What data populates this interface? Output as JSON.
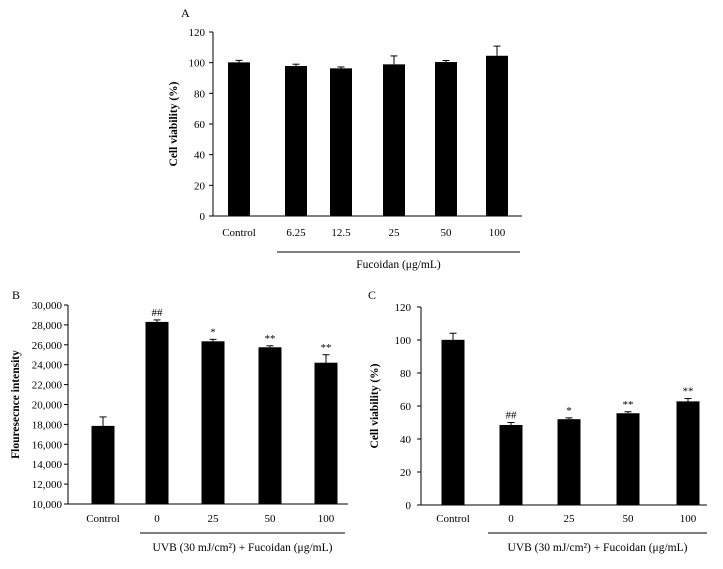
{
  "chart_data": [
    {
      "type": "bar",
      "panel_label": "A",
      "title": "",
      "ylabel": "Cell viability (%)",
      "ylim": [
        0,
        120
      ],
      "yticks": [
        0,
        20,
        40,
        60,
        80,
        100,
        120
      ],
      "ytick_labels": [
        "0",
        "20",
        "40",
        "60",
        "80",
        "100",
        "120"
      ],
      "categories": [
        "Control",
        "6.25",
        "12.5",
        "25",
        "50",
        "100"
      ],
      "values": [
        100.2,
        97.8,
        96.3,
        98.9,
        100.4,
        104.5
      ],
      "errors": [
        1.3,
        1.2,
        0.9,
        5.5,
        1.0,
        6.3
      ],
      "annotations": [
        "",
        "",
        "",
        "",
        "",
        ""
      ],
      "group_label": "Fucoidan (μg/mL)",
      "group_span": [
        1,
        5
      ],
      "bar_color": "#000000"
    },
    {
      "type": "bar",
      "panel_label": "B",
      "title": "",
      "ylabel": "Flouresecnce intensity",
      "ylim": [
        10000,
        30000
      ],
      "yticks": [
        10000,
        12000,
        14000,
        16000,
        18000,
        20000,
        22000,
        24000,
        26000,
        28000,
        30000
      ],
      "ytick_labels": [
        "10,000",
        "12,000",
        "14,000",
        "16,000",
        "18,000",
        "20,000",
        "22,000",
        "24,000",
        "26,000",
        "28,000",
        "30,000"
      ],
      "categories": [
        "Control",
        "0",
        "25",
        "50",
        "100"
      ],
      "values": [
        17850,
        28300,
        26350,
        25750,
        24200
      ],
      "errors": [
        900,
        200,
        200,
        150,
        800
      ],
      "annotations": [
        "",
        "##",
        "*",
        "**",
        "**"
      ],
      "group_label": "UVB (30 mJ/cm²) + Fucoidan (μg/mL)",
      "group_span": [
        1,
        4
      ],
      "bar_color": "#000000"
    },
    {
      "type": "bar",
      "panel_label": "C",
      "title": "",
      "ylabel": "Cell viability (%)",
      "ylim": [
        0,
        120
      ],
      "yticks": [
        0,
        20,
        40,
        60,
        80,
        100,
        120
      ],
      "ytick_labels": [
        "0",
        "20",
        "40",
        "60",
        "80",
        "100",
        "120"
      ],
      "categories": [
        "Control",
        "0",
        "25",
        "50",
        "100"
      ],
      "values": [
        100.1,
        48.5,
        52.0,
        55.6,
        62.8
      ],
      "errors": [
        4.0,
        1.5,
        0.8,
        0.9,
        1.7
      ],
      "annotations": [
        "",
        "##",
        "*",
        "**",
        "**"
      ],
      "group_label": "UVB (30 mJ/cm²) + Fucoidan (μg/mL)",
      "group_span": [
        1,
        4
      ],
      "bar_color": "#000000"
    }
  ]
}
